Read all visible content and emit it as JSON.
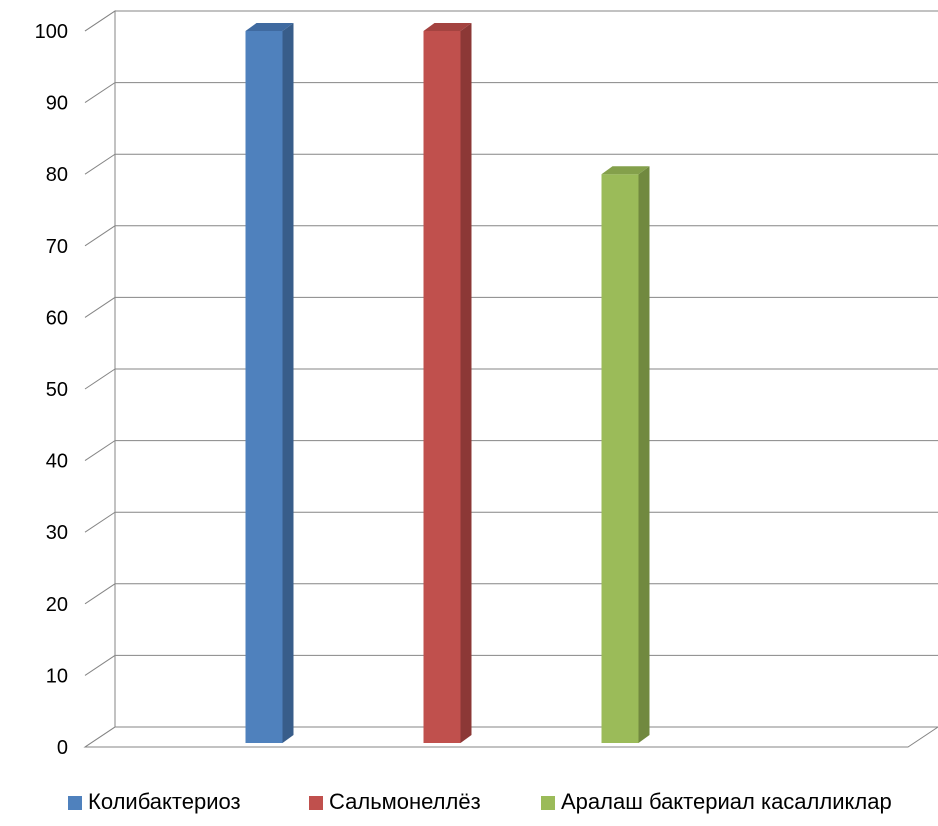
{
  "chart_data": {
    "type": "bar",
    "title": "",
    "xlabel": "",
    "ylabel": "",
    "ylim": [
      0,
      100
    ],
    "yticks": [
      0,
      10,
      20,
      30,
      40,
      50,
      60,
      70,
      80,
      90,
      100
    ],
    "grid": true,
    "legend_position": "bottom",
    "style": "3d-column",
    "series": [
      {
        "name": "Колибактериоз",
        "value": 100,
        "color": "#4F81BD",
        "side_color": "#385D8A",
        "top_color": "#3F6AA0"
      },
      {
        "name": "Сальмонеллёз",
        "value": 100,
        "color": "#C0504D",
        "side_color": "#8C3836",
        "top_color": "#A44340"
      },
      {
        "name": "Аралаш бактериал касалликлар",
        "value": 80,
        "color": "#9BBB59",
        "side_color": "#71893F",
        "top_color": "#84A04B"
      }
    ]
  }
}
